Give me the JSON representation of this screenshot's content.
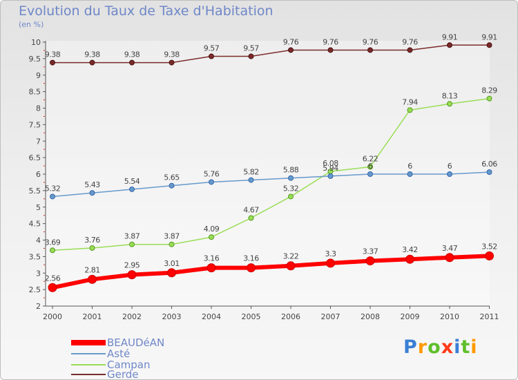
{
  "chart_data": {
    "type": "line",
    "title": "Evolution du Taux de Taxe d'Habitation",
    "subtitle": "(en %)",
    "x": [
      "2000",
      "2001",
      "2002",
      "2003",
      "2004",
      "2005",
      "2006",
      "2007",
      "2008",
      "2009",
      "2010",
      "2011"
    ],
    "ylim": [
      2,
      10
    ],
    "yticks": [
      "2",
      "2.5",
      "3",
      "3.5",
      "4",
      "4.5",
      "5",
      "5.5",
      "6",
      "6.5",
      "7",
      "7.5",
      "8",
      "8.5",
      "9",
      "9.5",
      "10"
    ],
    "grid": false,
    "legend_position": "bottom-left",
    "series": [
      {
        "name": "BEAUDéAN",
        "color": "#ff0000",
        "values": [
          2.56,
          2.81,
          2.95,
          3.01,
          3.16,
          3.16,
          3.22,
          3.3,
          3.37,
          3.42,
          3.47,
          3.52
        ],
        "labels": [
          "2.56",
          "2.81",
          "2.95",
          "3.01",
          "3.16",
          "3.16",
          "3.22",
          "3.3",
          "3.37",
          "3.42",
          "3.47",
          "3.52"
        ]
      },
      {
        "name": "Asté",
        "color": "#6699cc",
        "values": [
          5.32,
          5.43,
          5.54,
          5.65,
          5.76,
          5.82,
          5.88,
          5.94,
          6,
          6,
          6,
          6.06
        ],
        "labels": [
          "5.32",
          "5.43",
          "5.54",
          "5.65",
          "5.76",
          "5.82",
          "5.88",
          "5.94",
          "6",
          "6",
          "6",
          "6.06"
        ]
      },
      {
        "name": "Campan",
        "color": "#99dd55",
        "values": [
          3.69,
          3.76,
          3.87,
          3.87,
          4.09,
          4.67,
          5.32,
          6.08,
          6.22,
          7.94,
          8.13,
          8.29
        ],
        "labels": [
          "3.69",
          "3.76",
          "3.87",
          "3.87",
          "4.09",
          "4.67",
          "5.32",
          "6.08",
          "6.22",
          "7.94",
          "8.13",
          "8.29"
        ]
      },
      {
        "name": "Gerde",
        "color": "#7a2a2a",
        "values": [
          9.38,
          9.38,
          9.38,
          9.38,
          9.57,
          9.57,
          9.76,
          9.76,
          9.76,
          9.76,
          9.91,
          9.91
        ],
        "labels": [
          "9.38",
          "9.38",
          "9.38",
          "9.38",
          "9.57",
          "9.57",
          "9.76",
          "9.76",
          "9.76",
          "9.76",
          "9.91",
          "9.91"
        ]
      }
    ]
  },
  "logo": {
    "letters": [
      "P",
      "r",
      "o",
      "x",
      "i",
      "t",
      "i"
    ],
    "colors": [
      "#3a7fd5",
      "#ff9a00",
      "#5fbf2a",
      "#ff3a1a",
      "#3a7fd5",
      "#5fbf2a",
      "#ff9a00"
    ]
  }
}
